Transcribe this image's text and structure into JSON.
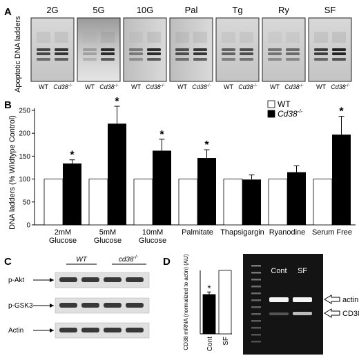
{
  "panel_a": {
    "letter": "A",
    "ylabel": "Apoptotic DNA ladders",
    "gels": [
      {
        "header": "2G",
        "lanes": [
          "WT",
          "Cd38-/-"
        ]
      },
      {
        "header": "5G",
        "lanes": [
          "WT",
          "Cd38-/-"
        ]
      },
      {
        "header": "10G",
        "lanes": [
          "WT",
          "Cd38-/-"
        ]
      },
      {
        "header": "Pal",
        "lanes": [
          "WT",
          "Cd38-/-"
        ]
      },
      {
        "header": "Tg",
        "lanes": [
          "WT",
          "Cd38-/-"
        ]
      },
      {
        "header": "Ry",
        "lanes": [
          "WT",
          "Cd38-/-"
        ]
      },
      {
        "header": "SF",
        "lanes": [
          "WT",
          "Cd38-/-"
        ]
      }
    ]
  },
  "panel_c": {
    "letter": "C",
    "groups": [
      "WT",
      "cd38-/-"
    ],
    "rows": [
      "p-Akt",
      "p-GSK3",
      "Actin"
    ]
  },
  "panel_d": {
    "letter": "D",
    "bar_ylabel": "CD38 mRNA (normalized to actin) (AU)",
    "bar_categories": [
      "Cont",
      "SF"
    ],
    "bar_values": [
      62,
      100
    ],
    "significance": "*",
    "gel_lanes": [
      "Cont",
      "SF"
    ],
    "gel_bands": [
      "actin",
      "CD38"
    ]
  },
  "chart_data": {
    "type": "bar",
    "panel_letter": "B",
    "ylabel": "DNA ladders (% Wildtype Control)",
    "ylim": [
      0,
      250
    ],
    "yticks": [
      0,
      50,
      100,
      150,
      200,
      250
    ],
    "categories": [
      [
        "2mM",
        "Glucose"
      ],
      [
        "5mM",
        "Glucose"
      ],
      [
        "10mM",
        "Glucose"
      ],
      [
        "Palmitate"
      ],
      [
        "Thapsigargin"
      ],
      [
        "Ryanodine"
      ],
      [
        "Serum Free"
      ]
    ],
    "series": [
      {
        "name": "WT",
        "values": [
          100,
          100,
          100,
          100,
          100,
          100,
          100
        ],
        "color": "#ffffff"
      },
      {
        "name": "Cd38-/-",
        "values": [
          134,
          221,
          162,
          146,
          99,
          115,
          197
        ],
        "errors": [
          8,
          38,
          25,
          18,
          10,
          14,
          40
        ],
        "color": "#000000"
      }
    ],
    "significant": [
      true,
      true,
      true,
      true,
      false,
      false,
      true
    ],
    "legend_position": "top-right",
    "grid": false
  }
}
